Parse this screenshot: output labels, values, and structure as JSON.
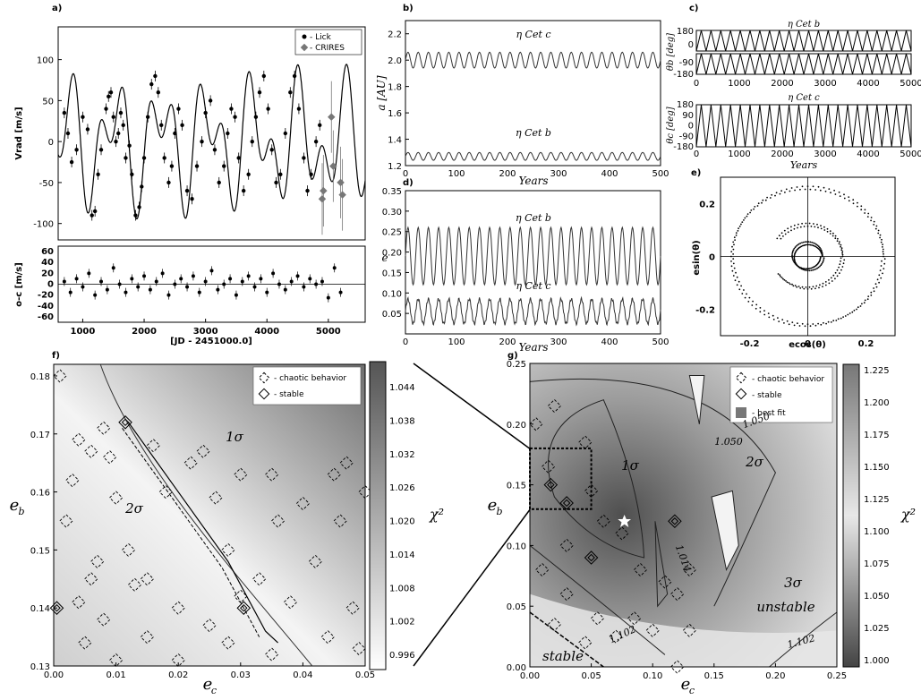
{
  "chart_data": [
    {
      "panel": "a)",
      "type": "scatter",
      "ylabel": "Vrad [m/s]",
      "ylim": [
        -120,
        140
      ],
      "xlim": [
        600,
        5600
      ],
      "yticks": [
        "-100",
        "-50",
        "0",
        "50",
        "100"
      ],
      "legend": [
        "- Lick",
        "- CRIRES"
      ],
      "legend_position": "top-right",
      "series": [
        {
          "name": "- Lick",
          "x": [
            700,
            760,
            820,
            900,
            1000,
            1080,
            1150,
            1200,
            1250,
            1300,
            1380,
            1420,
            1460,
            1500,
            1540,
            1580,
            1620,
            1660,
            1700,
            1760,
            1800,
            1860,
            1920,
            1960,
            2000,
            2060,
            2120,
            2180,
            2230,
            2280,
            2330,
            2400,
            2450,
            2500,
            2560,
            2620,
            2700,
            2780,
            2860,
            2940,
            3000,
            3080,
            3150,
            3220,
            3300,
            3360,
            3420,
            3480,
            3540,
            3620,
            3700,
            3760,
            3820,
            3880,
            3950,
            4020,
            4080,
            4150,
            4220,
            4300,
            4380,
            4450,
            4520,
            4600,
            4660,
            4720,
            4800,
            4860
          ],
          "y": [
            35,
            10,
            -25,
            -10,
            30,
            15,
            -90,
            -85,
            -40,
            -10,
            40,
            55,
            60,
            30,
            0,
            10,
            35,
            20,
            -20,
            -5,
            -40,
            -90,
            -80,
            -55,
            -20,
            30,
            70,
            80,
            60,
            20,
            -20,
            -50,
            -30,
            10,
            40,
            20,
            -60,
            -70,
            -30,
            0,
            35,
            50,
            -10,
            -50,
            -30,
            10,
            40,
            30,
            -20,
            -60,
            -40,
            0,
            30,
            60,
            80,
            40,
            -10,
            -50,
            -40,
            10,
            60,
            80,
            40,
            -20,
            -60,
            -40,
            0,
            20
          ]
        },
        {
          "name": "- CRIRES",
          "x": [
            4900,
            4920,
            5050,
            5080,
            5200,
            5230
          ],
          "y": [
            -70,
            -60,
            30,
            -30,
            -50,
            -65
          ]
        }
      ],
      "model_curve": {
        "amplitude_x": [
          600,
          5600
        ],
        "note": "Keplerian two-planet fit"
      }
    },
    {
      "panel": "a) residuals",
      "type": "scatter",
      "ylabel": "o-c [m/s]",
      "xlabel": "[JD - 2451000.0]",
      "ylim": [
        -70,
        70
      ],
      "yticks": [
        "-60",
        "-40",
        "-20",
        "0",
        "20",
        "40",
        "60"
      ],
      "xticks": [
        "1000",
        "2000",
        "3000",
        "4000",
        "5000"
      ],
      "x": [
        700,
        800,
        900,
        1000,
        1100,
        1200,
        1300,
        1400,
        1500,
        1600,
        1700,
        1800,
        1900,
        2000,
        2100,
        2200,
        2300,
        2400,
        2500,
        2600,
        2700,
        2800,
        2900,
        3000,
        3100,
        3200,
        3300,
        3400,
        3500,
        3600,
        3700,
        3800,
        3900,
        4000,
        4100,
        4200,
        4300,
        4400,
        4500,
        4600,
        4700,
        4800,
        4900,
        5000,
        5100,
        5200
      ],
      "y": [
        5,
        -15,
        10,
        -5,
        20,
        -20,
        5,
        -10,
        30,
        0,
        -15,
        10,
        -5,
        15,
        -10,
        5,
        20,
        -20,
        0,
        10,
        -5,
        15,
        -15,
        5,
        25,
        -10,
        0,
        10,
        -20,
        5,
        15,
        -5,
        10,
        -15,
        20,
        0,
        -10,
        5,
        15,
        -5,
        10,
        0,
        5,
        -25,
        30,
        -15
      ]
    },
    {
      "panel": "b)",
      "type": "line",
      "ylabel": "a [AU]",
      "xlabel": "Years",
      "xlim": [
        0,
        500
      ],
      "ylim": [
        1.2,
        2.3
      ],
      "xticks": [
        "0",
        "100",
        "200",
        "300",
        "400",
        "500"
      ],
      "yticks": [
        "1.2",
        "1.4",
        "1.6",
        "1.8",
        "2.0",
        "2.2"
      ],
      "series": [
        {
          "name": "η Cet c",
          "mean": 2.0,
          "amp": 0.06,
          "period_years": 20
        },
        {
          "name": "η Cet b",
          "mean": 1.27,
          "amp": 0.03,
          "period_years": 20
        }
      ]
    },
    {
      "panel": "c)",
      "type": "line",
      "ylabel_top": "θb [deg]",
      "ylabel_bottom": "θc [deg]",
      "title_top": "η Cet b",
      "title_bottom": "η Cet c",
      "xlabel": "Years",
      "xlim": [
        0,
        5000
      ],
      "ylim": [
        -180,
        180
      ],
      "xticks": [
        "0",
        "1000",
        "2000",
        "3000",
        "4000",
        "5000"
      ],
      "yticks": [
        "-180",
        "-90",
        "0",
        "90",
        "180"
      ]
    },
    {
      "panel": "d)",
      "type": "line",
      "ylabel": "e",
      "xlabel": "Years",
      "xlim": [
        0,
        500
      ],
      "ylim": [
        0.0,
        0.35
      ],
      "xticks": [
        "0",
        "100",
        "200",
        "300",
        "400",
        "500"
      ],
      "yticks": [
        "0.05",
        "0.10",
        "0.15",
        "0.20",
        "0.25",
        "0.30",
        "0.35"
      ],
      "series": [
        {
          "name": "η Cet b",
          "mean": 0.19,
          "amp": 0.07,
          "period_years": 20
        },
        {
          "name": "η Cet c",
          "mean": 0.055,
          "amp": 0.03,
          "period_years": 20
        }
      ]
    },
    {
      "panel": "e)",
      "type": "scatter",
      "xlabel": "ecos(θ)",
      "ylabel": "esin(θ)",
      "xlim": [
        -0.3,
        0.3
      ],
      "ylim": [
        -0.3,
        0.3
      ],
      "xticks": [
        "-0.2",
        "0",
        "0.2"
      ],
      "yticks": [
        "-0.2",
        "0",
        "0.2"
      ],
      "rings": [
        0.05,
        0.12,
        0.26
      ]
    },
    {
      "panel": "f)",
      "type": "heatmap",
      "xlabel": "e_c",
      "ylabel": "e_b",
      "colorbar_label": "χ²",
      "xlim": [
        0.0,
        0.05
      ],
      "ylim": [
        0.13,
        0.182
      ],
      "xticks": [
        "0.00",
        "0.01",
        "0.02",
        "0.03",
        "0.04",
        "0.05"
      ],
      "yticks": [
        "0.13",
        "0.14",
        "0.15",
        "0.16",
        "0.17",
        "0.18"
      ],
      "colorbar_ticks": [
        "0.996",
        "1.002",
        "1.008",
        "1.014",
        "1.020",
        "1.026",
        "1.032",
        "1.038",
        "1.044"
      ],
      "legend": [
        "- chaotic behavior",
        "- stable"
      ],
      "region_labels": [
        "1σ",
        "2σ"
      ]
    },
    {
      "panel": "g)",
      "type": "heatmap",
      "xlabel": "e_c",
      "ylabel": "e_b",
      "colorbar_label": "χ²",
      "xlim": [
        0.0,
        0.25
      ],
      "ylim": [
        0.0,
        0.25
      ],
      "xticks": [
        "0.00",
        "0.05",
        "0.10",
        "0.15",
        "0.20",
        "0.25"
      ],
      "yticks": [
        "0.00",
        "0.05",
        "0.10",
        "0.15",
        "0.20",
        "0.25"
      ],
      "colorbar_ticks": [
        "1.000",
        "1.025",
        "1.050",
        "1.075",
        "1.100",
        "1.125",
        "1.150",
        "1.175",
        "1.200",
        "1.225"
      ],
      "legend": [
        "- chaotic behavior",
        "- stable",
        "- best fit"
      ],
      "region_labels": [
        "1σ",
        "2σ",
        "3σ",
        "unstable",
        "stable"
      ],
      "contour_labels": [
        "1.050",
        "1.050",
        "1.014",
        "1.102",
        "1.102"
      ],
      "best_fit": [
        0.077,
        0.12
      ]
    }
  ]
}
